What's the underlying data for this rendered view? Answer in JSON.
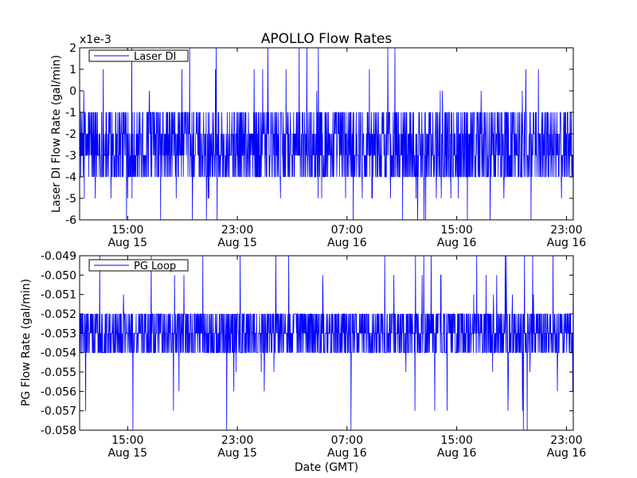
{
  "chart_data": [
    {
      "type": "line",
      "title": "APOLLO Flow Rates",
      "ylabel": "Laser DI Flow Rate (gal/min)",
      "xlabel": "",
      "offset_label": "x1e-3",
      "series": [
        {
          "name": "Laser DI",
          "color": "#0000ff"
        }
      ],
      "legend": "top-left",
      "ylim": [
        -6,
        2
      ],
      "yticks": [
        -6,
        -5,
        -4,
        -3,
        -2,
        -1,
        0,
        1,
        2
      ],
      "ytick_labels": [
        "-6",
        "-5",
        "-4",
        "-3",
        "-2",
        "-1",
        "0",
        "1",
        "2"
      ],
      "xlim_hours": [
        11.5,
        47.5
      ],
      "xticks": [
        {
          "hour": 15,
          "time": "15:00",
          "date": "Aug 15"
        },
        {
          "hour": 23,
          "time": "23:00",
          "date": "Aug 15"
        },
        {
          "hour": 31,
          "time": "07:00",
          "date": "Aug 16"
        },
        {
          "hour": 39,
          "time": "15:00",
          "date": "Aug 16"
        },
        {
          "hour": 47,
          "time": "23:00",
          "date": "Aug 16"
        }
      ],
      "signal": {
        "typical_range": [
          -4,
          -1
        ],
        "spike_range": [
          -6,
          2
        ],
        "step": 1
      }
    },
    {
      "type": "line",
      "title": "",
      "ylabel": "PG Flow Rate (gal/min)",
      "xlabel": "Date (GMT)",
      "series": [
        {
          "name": "PG Loop",
          "color": "#0000ff"
        }
      ],
      "legend": "top-left",
      "ylim": [
        -0.058,
        -0.049
      ],
      "yticks": [
        -0.058,
        -0.057,
        -0.056,
        -0.055,
        -0.054,
        -0.053,
        -0.052,
        -0.051,
        -0.05,
        -0.049
      ],
      "ytick_labels": [
        "-0.058",
        "-0.057",
        "-0.056",
        "-0.055",
        "-0.054",
        "-0.053",
        "-0.052",
        "-0.051",
        "-0.050",
        "-0.049"
      ],
      "xlim_hours": [
        11.5,
        47.5
      ],
      "xticks": [
        {
          "hour": 15,
          "time": "15:00",
          "date": "Aug 15"
        },
        {
          "hour": 23,
          "time": "23:00",
          "date": "Aug 15"
        },
        {
          "hour": 31,
          "time": "07:00",
          "date": "Aug 16"
        },
        {
          "hour": 39,
          "time": "15:00",
          "date": "Aug 16"
        },
        {
          "hour": 47,
          "time": "23:00",
          "date": "Aug 16"
        }
      ],
      "signal": {
        "typical_range": [
          -0.054,
          -0.052
        ],
        "spike_range": [
          -0.058,
          -0.049
        ],
        "step": 0.001
      }
    }
  ]
}
